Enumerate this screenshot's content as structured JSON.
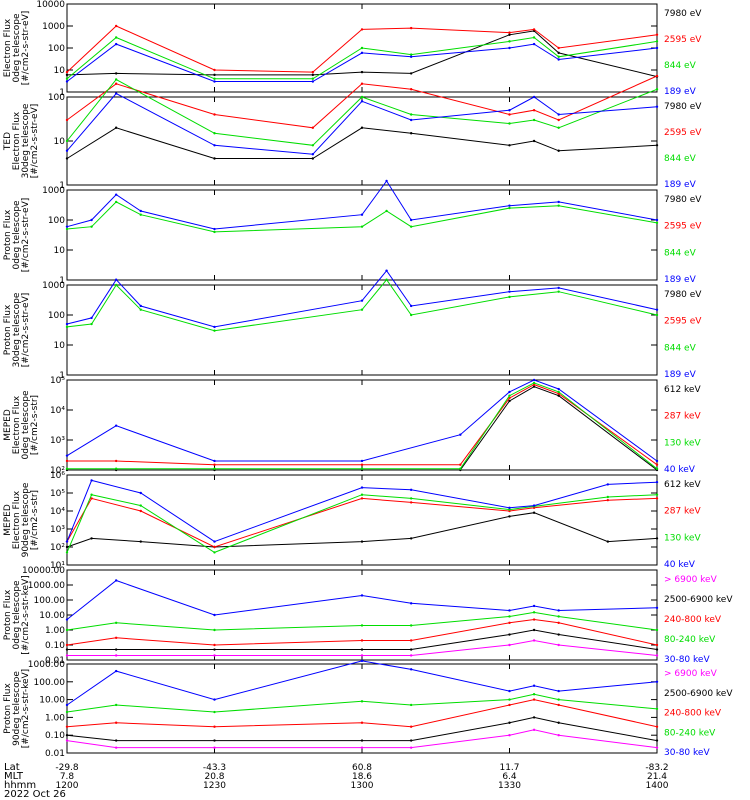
{
  "footer": {
    "rows": [
      "Lat",
      "MLT",
      "hhmm",
      "2022 Oct 26"
    ],
    "ticks": [
      {
        "lat": "-29.8",
        "mlt": "7.8",
        "hhmm": "1200"
      },
      {
        "lat": "-43.3",
        "mlt": "20.8",
        "hhmm": "1230"
      },
      {
        "lat": "60.8",
        "mlt": "18.6",
        "hhmm": "1300"
      },
      {
        "lat": "11.7",
        "mlt": "6.4",
        "hhmm": "1330"
      },
      {
        "lat": "-83.2",
        "mlt": "21.4",
        "hhmm": "1400"
      }
    ]
  },
  "colors": {
    "black": "#000000",
    "red": "#ff0000",
    "green": "#00dd00",
    "blue": "#0000ff",
    "magenta": "#ff00ff"
  },
  "chart_data": [
    {
      "type": "line",
      "ylabel": [
        "Electron Flux",
        "0deg telescope",
        "[#/cm2-s-str-eV]"
      ],
      "yscale": "log",
      "ytick_labels": [
        "1",
        "10",
        "100",
        "1000",
        "10000"
      ],
      "ytick_values": [
        1,
        10,
        100,
        1000,
        10000
      ],
      "legend": [
        {
          "label": "7980 eV",
          "color": "black"
        },
        {
          "label": "2595 eV",
          "color": "red"
        },
        {
          "label": "844 eV",
          "color": "green"
        },
        {
          "label": "189 eV",
          "color": "blue"
        }
      ],
      "x": [
        "1200",
        "1210",
        "1230",
        "1250",
        "1300",
        "1310",
        "1330",
        "1335",
        "1340",
        "1400"
      ],
      "series": [
        {
          "name": "7980 eV",
          "values": [
            6,
            7,
            6,
            6,
            8,
            7,
            400,
            600,
            60,
            5
          ]
        },
        {
          "name": "2595 eV",
          "values": [
            8,
            1000,
            10,
            8,
            700,
            800,
            500,
            700,
            100,
            400
          ]
        },
        {
          "name": "844 eV",
          "values": [
            4,
            300,
            4,
            4,
            100,
            50,
            200,
            300,
            40,
            200
          ]
        },
        {
          "name": "189 eV",
          "values": [
            3,
            150,
            3,
            3,
            60,
            40,
            100,
            150,
            30,
            100
          ]
        }
      ]
    },
    {
      "type": "line",
      "ylabel": [
        "TED",
        "Electron Flux",
        "30deg telescope",
        "[#/cm2-s-str-eV]"
      ],
      "yscale": "log",
      "ytick_labels": [
        "1",
        "10",
        "100"
      ],
      "ytick_values": [
        1,
        10,
        100
      ],
      "legend": [
        {
          "label": "7980 eV",
          "color": "black"
        },
        {
          "label": "2595 eV",
          "color": "red"
        },
        {
          "label": "844 eV",
          "color": "green"
        },
        {
          "label": "189 eV",
          "color": "blue"
        }
      ],
      "x": [
        "1200",
        "1210",
        "1230",
        "1250",
        "1300",
        "1310",
        "1330",
        "1335",
        "1340",
        "1400"
      ],
      "series": [
        {
          "name": "7980 eV",
          "values": [
            4,
            20,
            4,
            4,
            20,
            15,
            8,
            10,
            6,
            8
          ]
        },
        {
          "name": "2595 eV",
          "values": [
            30,
            200,
            40,
            20,
            200,
            150,
            40,
            50,
            30,
            300
          ]
        },
        {
          "name": "844 eV",
          "values": [
            10,
            250,
            15,
            8,
            100,
            40,
            25,
            30,
            20,
            150
          ]
        },
        {
          "name": "189 eV",
          "values": [
            6,
            120,
            8,
            5,
            80,
            30,
            50,
            100,
            40,
            60
          ]
        }
      ]
    },
    {
      "type": "line",
      "ylabel": [
        "Proton Flux",
        "0deg telescope",
        "[#/cm2-s-str-eV]"
      ],
      "yscale": "log",
      "ytick_labels": [
        "1",
        "10",
        "100",
        "1000"
      ],
      "ytick_values": [
        1,
        10,
        100,
        1000
      ],
      "legend": [
        {
          "label": "7980 eV",
          "color": "black"
        },
        {
          "label": "2595 eV",
          "color": "red"
        },
        {
          "label": "844 eV",
          "color": "green"
        },
        {
          "label": "189 eV",
          "color": "blue"
        }
      ],
      "x": [
        "1200",
        "1205",
        "1210",
        "1215",
        "1230",
        "1300",
        "1305",
        "1310",
        "1330",
        "1340",
        "1400"
      ],
      "series": [
        {
          "name": "189 eV",
          "values": [
            60,
            100,
            700,
            200,
            50,
            150,
            2000,
            100,
            300,
            400,
            100
          ]
        },
        {
          "name": "844 eV",
          "values": [
            50,
            60,
            400,
            150,
            40,
            60,
            200,
            60,
            250,
            300,
            80
          ]
        }
      ]
    },
    {
      "type": "line",
      "ylabel": [
        "Proton Flux",
        "30deg telescope",
        "[#/cm2-s-str-eV]"
      ],
      "yscale": "log",
      "ytick_labels": [
        "1",
        "10",
        "100",
        "1000"
      ],
      "ytick_values": [
        1,
        10,
        100,
        1000
      ],
      "legend": [
        {
          "label": "7980 eV",
          "color": "black"
        },
        {
          "label": "2595 eV",
          "color": "red"
        },
        {
          "label": "844 eV",
          "color": "green"
        },
        {
          "label": "189 eV",
          "color": "blue"
        }
      ],
      "x": [
        "1200",
        "1205",
        "1210",
        "1215",
        "1230",
        "1300",
        "1305",
        "1310",
        "1330",
        "1340",
        "1400"
      ],
      "series": [
        {
          "name": "189 eV",
          "values": [
            50,
            80,
            1500,
            200,
            40,
            300,
            3000,
            200,
            600,
            800,
            150
          ]
        },
        {
          "name": "844 eV",
          "values": [
            40,
            50,
            1000,
            150,
            30,
            150,
            1500,
            100,
            400,
            600,
            100
          ]
        }
      ]
    },
    {
      "type": "line",
      "ylabel": [
        "MEPED",
        "Electron Flux",
        "0deg telescope",
        "[#/cm2-s-str]"
      ],
      "yscale": "log",
      "ytick_labels": [
        "10²",
        "10³",
        "10⁴",
        "10⁵"
      ],
      "ytick_values": [
        100,
        1000,
        10000,
        100000
      ],
      "legend": [
        {
          "label": "612 keV",
          "color": "black"
        },
        {
          "label": "287 keV",
          "color": "red"
        },
        {
          "label": "130 keV",
          "color": "green"
        },
        {
          "label": "40 keV",
          "color": "blue"
        }
      ],
      "x": [
        "1200",
        "1210",
        "1230",
        "1300",
        "1320",
        "1330",
        "1335",
        "1340",
        "1400"
      ],
      "series": [
        {
          "name": "612 keV",
          "values": [
            100,
            100,
            100,
            100,
            100,
            20000,
            60000,
            30000,
            100
          ]
        },
        {
          "name": "287 keV",
          "values": [
            200,
            200,
            150,
            150,
            150,
            25000,
            70000,
            35000,
            150
          ]
        },
        {
          "name": "130 keV",
          "values": [
            110,
            110,
            110,
            110,
            110,
            30000,
            80000,
            40000,
            110
          ]
        },
        {
          "name": "40 keV",
          "values": [
            300,
            3000,
            200,
            200,
            1500,
            40000,
            100000,
            50000,
            200
          ]
        }
      ]
    },
    {
      "type": "line",
      "ylabel": [
        "MEPED",
        "Electron Flux",
        "90deg telescope",
        "[#/cm2-s-str]"
      ],
      "yscale": "log",
      "ytick_labels": [
        "10¹",
        "10²",
        "10³",
        "10⁴",
        "10⁵",
        "10⁶"
      ],
      "ytick_values": [
        10,
        100,
        1000,
        10000,
        100000,
        1000000
      ],
      "legend": [
        {
          "label": "612 keV",
          "color": "black"
        },
        {
          "label": "287 keV",
          "color": "red"
        },
        {
          "label": "130 keV",
          "color": "green"
        },
        {
          "label": "40 keV",
          "color": "blue"
        }
      ],
      "x": [
        "1200",
        "1205",
        "1215",
        "1230",
        "1300",
        "1310",
        "1330",
        "1335",
        "1350",
        "1400"
      ],
      "series": [
        {
          "name": "612 keV",
          "values": [
            100,
            300,
            200,
            100,
            200,
            300,
            5000,
            8000,
            200,
            300
          ]
        },
        {
          "name": "287 keV",
          "values": [
            200,
            50000,
            10000,
            100,
            50000,
            30000,
            10000,
            15000,
            40000,
            50000
          ]
        },
        {
          "name": "130 keV",
          "values": [
            50,
            80000,
            20000,
            50,
            80000,
            50000,
            12000,
            18000,
            60000,
            80000
          ]
        },
        {
          "name": "40 keV",
          "values": [
            200,
            500000,
            100000,
            200,
            200000,
            150000,
            15000,
            20000,
            300000,
            400000
          ]
        }
      ]
    },
    {
      "type": "line",
      "ylabel": [
        "Proton Flux",
        "0deg telescope",
        "[#/cm2-s-str-keV]"
      ],
      "yscale": "log",
      "ytick_labels": [
        "0.01",
        "0.10",
        "1.00",
        "10.00",
        "100.00",
        "1000.00",
        "10000.00"
      ],
      "ytick_values": [
        0.01,
        0.1,
        1,
        10,
        100,
        1000,
        10000
      ],
      "legend": [
        {
          "label": "> 6900 keV",
          "color": "magenta"
        },
        {
          "label": "2500-6900 keV",
          "color": "black"
        },
        {
          "label": "240-800 keV",
          "color": "red"
        },
        {
          "label": "80-240 keV",
          "color": "green"
        },
        {
          "label": "30-80 keV",
          "color": "blue"
        }
      ],
      "x": [
        "1200",
        "1210",
        "1230",
        "1300",
        "1310",
        "1330",
        "1335",
        "1340",
        "1400"
      ],
      "series": [
        {
          "name": "> 6900 keV",
          "values": [
            0.02,
            0.02,
            0.02,
            0.02,
            0.02,
            0.1,
            0.2,
            0.1,
            0.02
          ]
        },
        {
          "name": "2500-6900 keV",
          "values": [
            0.05,
            0.05,
            0.05,
            0.05,
            0.05,
            0.5,
            1,
            0.5,
            0.05
          ]
        },
        {
          "name": "240-800 keV",
          "values": [
            0.1,
            0.3,
            0.1,
            0.2,
            0.2,
            3,
            5,
            3,
            0.1
          ]
        },
        {
          "name": "80-240 keV",
          "values": [
            1,
            3,
            1,
            2,
            2,
            8,
            15,
            8,
            1
          ]
        },
        {
          "name": "30-80 keV",
          "values": [
            5,
            2000,
            10,
            200,
            60,
            20,
            40,
            20,
            30
          ]
        }
      ]
    },
    {
      "type": "line",
      "ylabel": [
        "Proton Flux",
        "90deg telescope",
        "[#/cm2-s-str-keV]"
      ],
      "yscale": "log",
      "ytick_labels": [
        "0.01",
        "0.10",
        "1.00",
        "10.00",
        "100.00",
        "1000.00"
      ],
      "ytick_values": [
        0.01,
        0.1,
        1,
        10,
        100,
        1000
      ],
      "legend": [
        {
          "label": "> 6900 keV",
          "color": "magenta"
        },
        {
          "label": "2500-6900 keV",
          "color": "black"
        },
        {
          "label": "240-800 keV",
          "color": "red"
        },
        {
          "label": "80-240 keV",
          "color": "green"
        },
        {
          "label": "30-80 keV",
          "color": "blue"
        }
      ],
      "x": [
        "1200",
        "1210",
        "1230",
        "1300",
        "1310",
        "1330",
        "1335",
        "1340",
        "1400"
      ],
      "series": [
        {
          "name": "> 6900 keV",
          "values": [
            0.05,
            0.02,
            0.02,
            0.02,
            0.02,
            0.1,
            0.2,
            0.1,
            0.02
          ]
        },
        {
          "name": "2500-6900 keV",
          "values": [
            0.1,
            0.05,
            0.05,
            0.05,
            0.05,
            0.5,
            1,
            0.5,
            0.05
          ]
        },
        {
          "name": "240-800 keV",
          "values": [
            0.3,
            0.5,
            0.3,
            0.5,
            0.3,
            5,
            10,
            5,
            0.3
          ]
        },
        {
          "name": "80-240 keV",
          "values": [
            2,
            5,
            2,
            8,
            5,
            10,
            20,
            10,
            3
          ]
        },
        {
          "name": "30-80 keV",
          "values": [
            5,
            400,
            10,
            1500,
            500,
            30,
            60,
            30,
            100
          ]
        }
      ]
    }
  ]
}
